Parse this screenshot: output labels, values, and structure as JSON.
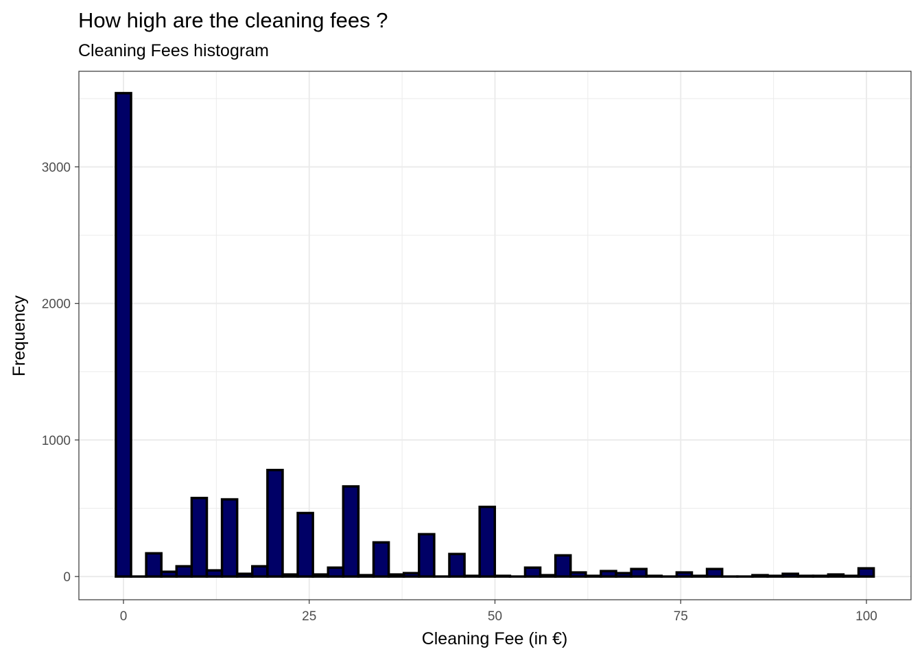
{
  "chart_data": {
    "type": "bar",
    "title": "How high are the cleaning fees ?",
    "subtitle": "Cleaning Fees histogram",
    "xlabel": "Cleaning Fee (in €)",
    "ylabel": "Frequency",
    "xlim": [
      -6,
      106
    ],
    "ylim": [
      -170,
      3700
    ],
    "x_ticks": [
      0,
      25,
      50,
      75,
      100
    ],
    "x_tick_labels": [
      "0",
      "25",
      "50",
      "75",
      "100"
    ],
    "y_ticks": [
      0,
      1000,
      2000,
      3000
    ],
    "y_tick_labels": [
      "0",
      "1000",
      "2000",
      "3000"
    ],
    "binwidth": 2.04,
    "bin_start": -1.02,
    "values": [
      3540,
      0,
      170,
      35,
      75,
      575,
      45,
      565,
      20,
      75,
      780,
      15,
      465,
      15,
      65,
      660,
      10,
      250,
      15,
      25,
      310,
      0,
      165,
      5,
      510,
      5,
      0,
      65,
      10,
      155,
      30,
      5,
      40,
      25,
      55,
      5,
      0,
      30,
      5,
      55,
      0,
      0,
      10,
      5,
      20,
      5,
      5,
      15,
      5,
      60
    ],
    "grid": true,
    "colors": {
      "fill": "#000066",
      "stroke": "#000000",
      "panel_border": "#333333",
      "grid": "#ebebeb"
    }
  }
}
